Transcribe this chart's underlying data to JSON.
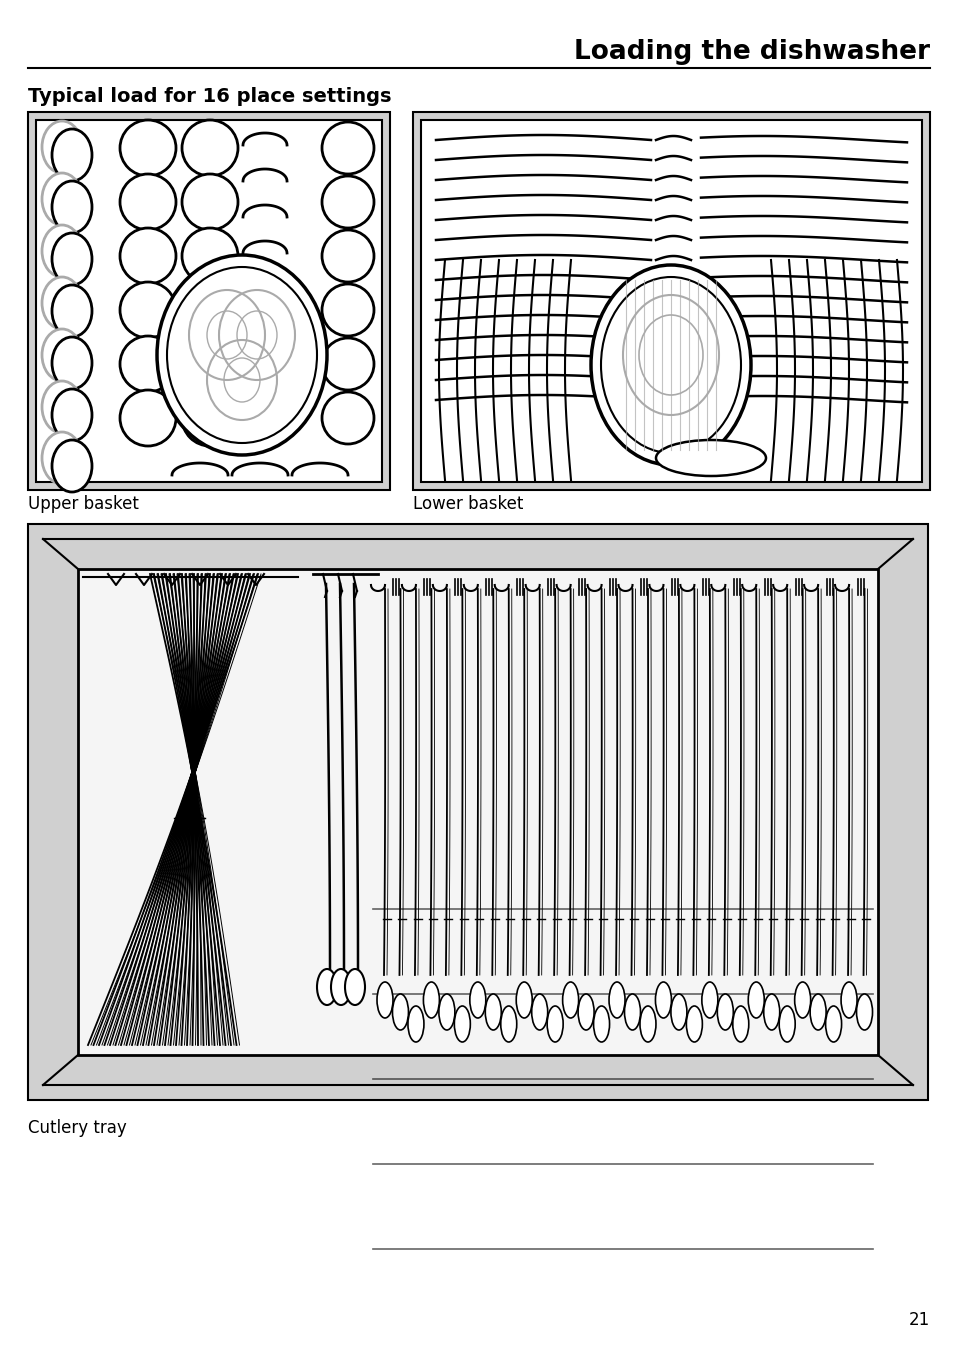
{
  "title": "Loading the dishwasher",
  "subtitle": "Typical load for 16 place settings",
  "label_upper": "Upper basket",
  "label_lower": "Lower basket",
  "label_cutlery": "Cutlery tray",
  "page_number": "21",
  "white": "#ffffff",
  "black": "#000000",
  "gray": "#aaaaaa",
  "light_gray": "#d0d0d0",
  "figsize": [
    9.54,
    13.52
  ],
  "dpi": 100
}
